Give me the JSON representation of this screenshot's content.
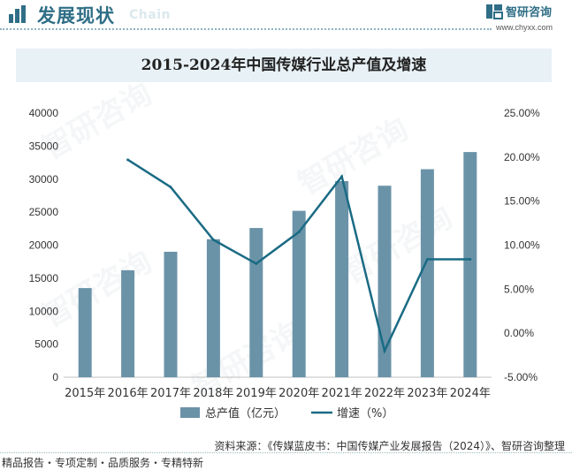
{
  "header": {
    "title": "发展现状",
    "subtitle": "Chain",
    "brand_name": "智研咨询",
    "brand_url": "www.chyxx.com",
    "accent_color": "#2f6e86"
  },
  "footer": {
    "source": "资料来源：《传媒蓝皮书：中国传媒产业发展报告（2024）》、智研咨询整理",
    "slogan": "精品报告・专项定制・品质服务・专精特新"
  },
  "watermark": "智研咨询",
  "chart_data": {
    "type": "bar",
    "title": "2015-2024年中国传媒行业总产值及增速",
    "categories": [
      "2015年",
      "2016年",
      "2017年",
      "2018年",
      "2019年",
      "2020年",
      "2021年",
      "2022年",
      "2023年",
      "2024年"
    ],
    "series": [
      {
        "name": "总产值（亿元）",
        "type": "bar",
        "axis": "left",
        "color": "#6b93a8",
        "values": [
          13500,
          16200,
          19000,
          20900,
          22600,
          25200,
          29700,
          29000,
          31500,
          34100
        ]
      },
      {
        "name": "增速（%）",
        "type": "line",
        "axis": "right",
        "color": "#1a6b84",
        "values": [
          null,
          19.7,
          16.6,
          10.6,
          7.9,
          11.5,
          17.8,
          -2.0,
          8.4,
          8.4
        ]
      }
    ],
    "y_left": {
      "min": 0,
      "max": 40000,
      "step": 5000,
      "ticks": [
        "0",
        "5000",
        "10000",
        "15000",
        "20000",
        "25000",
        "30000",
        "35000",
        "40000"
      ]
    },
    "y_right": {
      "min": -5,
      "max": 25,
      "step": 5,
      "ticks": [
        "-5.00%",
        "0.00%",
        "5.00%",
        "10.00%",
        "15.00%",
        "20.00%",
        "25.00%"
      ]
    },
    "legend_position": "bottom-center",
    "grid": false
  }
}
